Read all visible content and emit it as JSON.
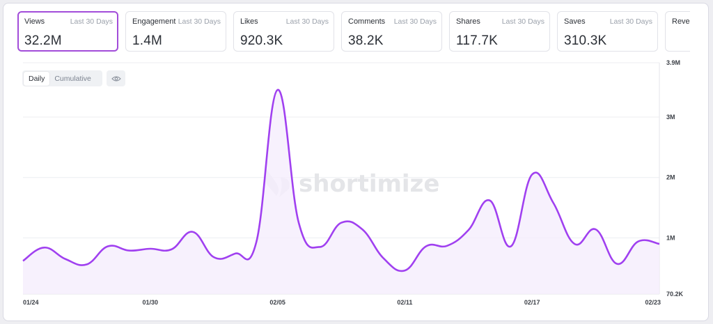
{
  "metrics": [
    {
      "label": "Views",
      "period": "Last 30 Days",
      "value": "32.2M",
      "active": true
    },
    {
      "label": "Engagement",
      "period": "Last 30 Days",
      "value": "1.4M"
    },
    {
      "label": "Likes",
      "period": "Last 30 Days",
      "value": "920.3K"
    },
    {
      "label": "Comments",
      "period": "Last 30 Days",
      "value": "38.2K"
    },
    {
      "label": "Shares",
      "period": "Last 30 Days",
      "value": "117.7K"
    },
    {
      "label": "Saves",
      "period": "Last 30 Days",
      "value": "310.3K"
    },
    {
      "label": "Revenue",
      "period": "",
      "value": ""
    }
  ],
  "toggle": {
    "daily": "Daily",
    "cumulative": "Cumulative",
    "selected": "Daily"
  },
  "icons": {
    "visibility": "eye-icon",
    "watermark_logo": "shortimize-logo-icon"
  },
  "watermark": "shortimize",
  "colors": {
    "accent": "#a24cd9",
    "line": "#a040f0",
    "fill": "#f5eefc"
  },
  "chart_data": {
    "type": "area",
    "x_dates": [
      "01/24",
      "01/25",
      "01/26",
      "01/27",
      "01/28",
      "01/29",
      "01/30",
      "01/31",
      "02/01",
      "02/02",
      "02/03",
      "02/04",
      "02/05",
      "02/06",
      "02/07",
      "02/08",
      "02/09",
      "02/10",
      "02/11",
      "02/12",
      "02/13",
      "02/14",
      "02/15",
      "02/16",
      "02/17",
      "02/18",
      "02/19",
      "02/20",
      "02/21",
      "02/22",
      "02/23"
    ],
    "series": [
      {
        "values": [
          620000,
          840000,
          650000,
          560000,
          860000,
          790000,
          820000,
          810000,
          1100000,
          680000,
          740000,
          930000,
          3450000,
          1250000,
          850000,
          1250000,
          1140000,
          660000,
          460000,
          860000,
          870000,
          1130000,
          1620000,
          860000,
          2050000,
          1580000,
          900000,
          1140000,
          570000,
          940000,
          900000
        ]
      }
    ],
    "x_tick_labels": [
      "01/24",
      "01/30",
      "02/05",
      "02/11",
      "02/17",
      "02/23"
    ],
    "y_tick_labels": [
      "3.9M",
      "3M",
      "2M",
      "1M",
      "70.2K"
    ],
    "y_tick_values": [
      3900000,
      3000000,
      2000000,
      1000000,
      70200
    ],
    "ylim": [
      70200,
      3900000
    ],
    "grid": true
  }
}
